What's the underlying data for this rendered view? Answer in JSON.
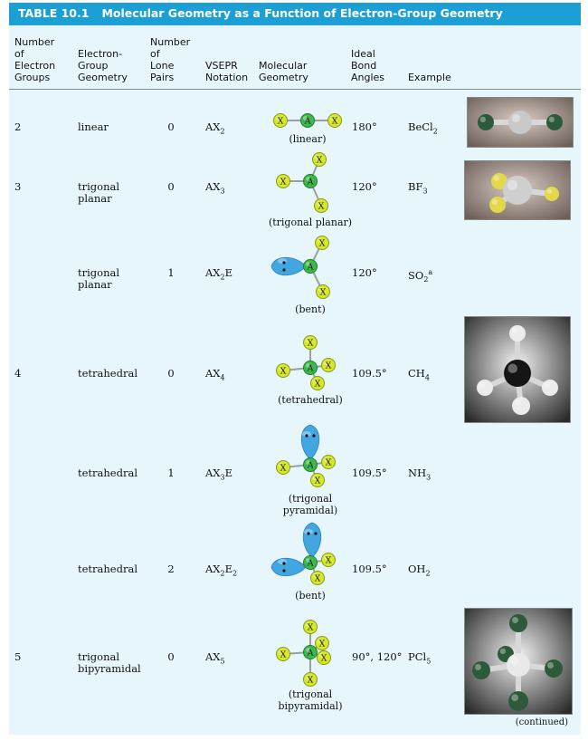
{
  "table": {
    "number": "TABLE 10.1",
    "title": "Molecular Geometry as a Function of Electron-Group Geometry"
  },
  "headers": {
    "groups": [
      "Number",
      "of",
      "Electron",
      "Groups"
    ],
    "egeom": [
      "Electron-",
      "Group",
      "Geometry"
    ],
    "lone": [
      "Number",
      "of",
      "Lone",
      "Pairs"
    ],
    "vsepr": [
      "VSEPR",
      "Notation"
    ],
    "mgeom": [
      "Molecular",
      "Geometry"
    ],
    "angles": [
      "Ideal",
      "Bond",
      "Angles"
    ],
    "example": "Example"
  },
  "rows": [
    {
      "groups": "2",
      "egeom": [
        "linear"
      ],
      "lone": "0",
      "vsepr": {
        "b": "AX",
        "s": "2",
        "e": ""
      },
      "shape": [
        "(linear)"
      ],
      "angle": "180°",
      "example": {
        "t": "BeCl",
        "s": "2",
        "sup": ""
      }
    },
    {
      "groups": "3",
      "egeom": [
        "trigonal",
        "planar"
      ],
      "lone": "0",
      "vsepr": {
        "b": "AX",
        "s": "3",
        "e": ""
      },
      "shape": [
        "(trigonal planar)"
      ],
      "angle": "120°",
      "example": {
        "t": "BF",
        "s": "3",
        "sup": ""
      }
    },
    {
      "groups": "",
      "egeom": [
        "trigonal",
        "planar"
      ],
      "lone": "1",
      "vsepr": {
        "b": "AX",
        "s": "2",
        "e": "E"
      },
      "shape": [
        "(bent)"
      ],
      "angle": "120°",
      "example": {
        "t": "SO",
        "s": "2",
        "sup": "a"
      }
    },
    {
      "groups": "4",
      "egeom": [
        "tetrahedral"
      ],
      "lone": "0",
      "vsepr": {
        "b": "AX",
        "s": "4",
        "e": ""
      },
      "shape": [
        "(tetrahedral)"
      ],
      "angle": "109.5°",
      "example": {
        "t": "CH",
        "s": "4",
        "sup": ""
      }
    },
    {
      "groups": "",
      "egeom": [
        "tetrahedral"
      ],
      "lone": "1",
      "vsepr": {
        "b": "AX",
        "s": "3",
        "e": "E"
      },
      "shape": [
        "(trigonal",
        "pyramidal)"
      ],
      "angle": "109.5°",
      "example": {
        "t": "NH",
        "s": "3",
        "sup": ""
      }
    },
    {
      "groups": "",
      "egeom": [
        "tetrahedral"
      ],
      "lone": "2",
      "vsepr": {
        "b": "AX",
        "s": "2",
        "e": "E",
        "es": "2"
      },
      "shape": [
        "(bent)"
      ],
      "angle": "109.5°",
      "example": {
        "t": "OH",
        "s": "2",
        "sup": ""
      }
    },
    {
      "groups": "5",
      "egeom": [
        "trigonal",
        "bipyramidal"
      ],
      "lone": "0",
      "vsepr": {
        "b": "AX",
        "s": "5",
        "e": ""
      },
      "shape": [
        "(trigonal",
        "bipyramidal)"
      ],
      "angle": "90°, 120°",
      "example": {
        "t": "PCl",
        "s": "5",
        "sup": ""
      }
    }
  ],
  "atoms": {
    "central": "A",
    "ligand": "X"
  },
  "colors": {
    "title_bar": "#1c9fd4",
    "panel": "#e6f6fb",
    "ligand": "#d6e82a",
    "central": "#3db84a",
    "lone_pair": "#3aa3e0"
  },
  "continued": "(continued)"
}
